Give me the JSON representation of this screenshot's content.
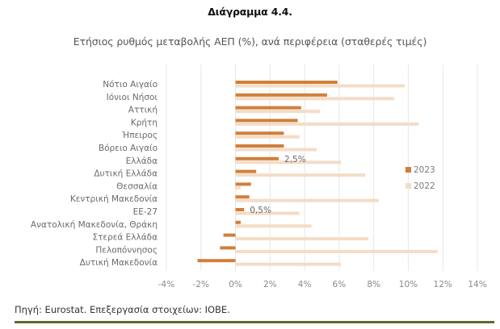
{
  "header": {
    "figure_number": "Διάγραμμα 4.4.",
    "title": "Ετήσιος ρυθμός μεταβολής ΑΕΠ (%), ανά περιφέρεια (σταθερές τιμές)"
  },
  "footer": {
    "source": "Πηγή: Eurostat. Επεξεργασία στοιχείων: ΙΟΒΕ."
  },
  "colors": {
    "series_2023": "#D07F3A",
    "series_2022": "#F4DCC7",
    "grid": "#e6e6e6",
    "rule": "#5f6b2e"
  },
  "chart_data": {
    "type": "bar",
    "orientation": "horizontal",
    "title": "Ετήσιος ρυθμός μεταβολής ΑΕΠ (%), ανά περιφέρεια (σταθερές τιμές)",
    "xlabel": "",
    "ylabel": "",
    "xlim": [
      -4,
      14
    ],
    "x_ticks": [
      -4,
      -2,
      0,
      2,
      4,
      6,
      8,
      10,
      12,
      14
    ],
    "x_tick_labels": [
      "-4%",
      "-2%",
      "0%",
      "2%",
      "4%",
      "6%",
      "8%",
      "10%",
      "12%",
      "14%"
    ],
    "grid": "vertical",
    "legend_position": "right",
    "categories": [
      "Νότιο Αιγαίο",
      "Ιόνιοι Νήσοι",
      "Αττική",
      "Κρήτη",
      "Ήπειρος",
      "Βόρειο Αιγαίο",
      "Ελλάδα",
      "Δυτική Ελλάδα",
      "Θεσσαλία",
      "Κεντρική Μακεδονία",
      "ΕΕ-27",
      "Ανατολική Μακεδονία, Θράκη",
      "Στερεά Ελλάδα",
      "Πελοπόννησος",
      "Δυτική Μακεδονία"
    ],
    "series": [
      {
        "name": "2023",
        "values": [
          5.9,
          5.3,
          3.8,
          3.6,
          2.8,
          2.8,
          2.5,
          1.2,
          0.9,
          0.8,
          0.5,
          0.3,
          -0.7,
          -0.9,
          -2.2
        ]
      },
      {
        "name": "2022",
        "values": [
          9.8,
          9.2,
          4.9,
          10.6,
          3.7,
          4.7,
          6.1,
          7.5,
          0.3,
          8.3,
          3.7,
          4.4,
          7.7,
          11.7,
          6.1
        ]
      }
    ],
    "annotations": [
      {
        "category": "Ελλάδα",
        "series": "2023",
        "text": "2,5%"
      },
      {
        "category": "ΕΕ-27",
        "series": "2023",
        "text": "0,5%"
      }
    ]
  }
}
